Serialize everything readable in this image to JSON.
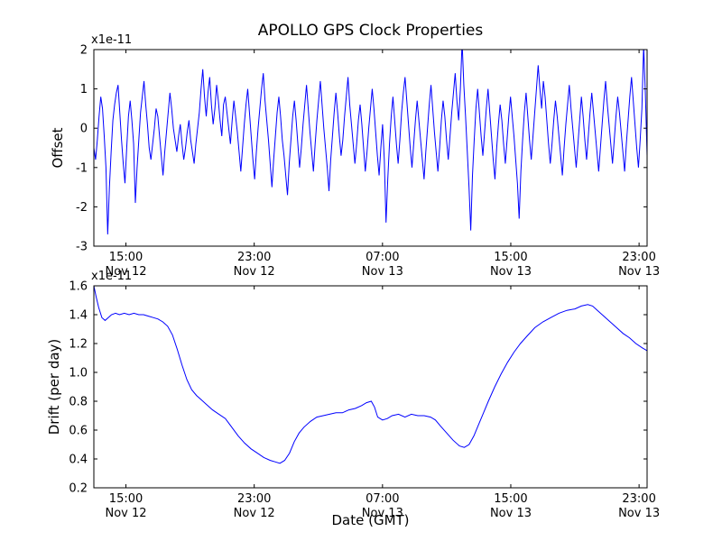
{
  "title": "APOLLO GPS Clock Properties",
  "chart_data": [
    {
      "type": "line",
      "name": "offset",
      "ylabel": "Offset",
      "offset_text": "x1e-11",
      "line_color": "#0000ff",
      "xlim": [
        13,
        47.5
      ],
      "ylim": [
        -3,
        2
      ],
      "yticks": [
        2,
        1,
        0,
        -1,
        -2,
        -3
      ],
      "ytick_labels": [
        "2",
        "1",
        "0",
        "-1",
        "-2",
        "-3"
      ],
      "xticks": [
        15,
        23,
        31,
        39,
        47
      ],
      "xtick_labels_time": [
        "15:00",
        "23:00",
        "07:00",
        "15:00",
        "23:00"
      ],
      "xtick_labels_date": [
        "Nov 12",
        "Nov 12",
        "Nov 13",
        "Nov 13",
        "Nov 13"
      ],
      "x_start": 13,
      "x_end": 47.5,
      "values": [
        -0.5,
        -0.8,
        -0.3,
        0.3,
        0.8,
        0.5,
        -0.2,
        -1.0,
        -2.7,
        -1.5,
        -0.6,
        0.2,
        0.6,
        0.9,
        1.1,
        0.4,
        -0.3,
        -0.9,
        -1.4,
        -0.5,
        0.3,
        0.7,
        0.2,
        -0.4,
        -1.9,
        -1.0,
        -0.3,
        0.4,
        0.8,
        1.2,
        0.6,
        0.1,
        -0.5,
        -0.8,
        -0.4,
        0.0,
        0.5,
        0.3,
        -0.2,
        -0.7,
        -1.2,
        -0.6,
        -0.1,
        0.4,
        0.9,
        0.5,
        0.0,
        -0.3,
        -0.6,
        -0.2,
        0.1,
        -0.4,
        -0.8,
        -0.5,
        -0.1,
        0.2,
        -0.3,
        -0.6,
        -0.9,
        -0.4,
        0.0,
        0.4,
        1.0,
        1.5,
        0.8,
        0.3,
        0.9,
        1.3,
        0.6,
        0.1,
        0.5,
        1.1,
        0.7,
        0.2,
        -0.2,
        0.6,
        0.8,
        0.4,
        0.0,
        -0.4,
        0.2,
        0.7,
        0.3,
        -0.1,
        -0.6,
        -1.1,
        -0.5,
        0.1,
        0.6,
        1.0,
        0.4,
        -0.2,
        -0.8,
        -1.3,
        -0.6,
        0.0,
        0.5,
        1.0,
        1.4,
        0.7,
        0.2,
        -0.3,
        -0.9,
        -1.5,
        -0.8,
        -0.2,
        0.4,
        0.8,
        0.3,
        -0.3,
        -0.7,
        -1.2,
        -1.7,
        -0.9,
        -0.3,
        0.3,
        0.7,
        0.2,
        -0.4,
        -1.0,
        -0.5,
        0.1,
        0.6,
        1.1,
        0.5,
        -0.1,
        -0.6,
        -1.1,
        -0.4,
        0.2,
        0.7,
        1.2,
        0.6,
        0.0,
        -0.5,
        -1.0,
        -1.6,
        -0.8,
        -0.2,
        0.4,
        0.9,
        0.4,
        -0.2,
        -0.7,
        -0.3,
        0.3,
        0.8,
        1.3,
        0.6,
        0.1,
        -0.4,
        -0.9,
        -0.4,
        0.2,
        0.6,
        0.1,
        -0.5,
        -1.1,
        -0.6,
        0.0,
        0.5,
        1.0,
        0.5,
        -0.1,
        -0.7,
        -1.2,
        -0.5,
        0.1,
        -0.8,
        -2.4,
        -1.3,
        -0.4,
        0.3,
        0.8,
        0.2,
        -0.4,
        -0.9,
        -0.3,
        0.4,
        0.9,
        1.3,
        0.7,
        0.1,
        -0.5,
        -1.0,
        -0.4,
        0.2,
        0.7,
        0.2,
        -0.3,
        -0.8,
        -1.3,
        -0.6,
        0.0,
        0.6,
        1.1,
        0.5,
        -0.1,
        -0.6,
        -1.1,
        -0.5,
        0.2,
        0.7,
        0.3,
        -0.3,
        -0.8,
        -0.2,
        0.4,
        0.9,
        1.4,
        0.7,
        0.2,
        1.0,
        2.2,
        1.1,
        0.3,
        -0.6,
        -1.5,
        -2.6,
        -1.2,
        -0.3,
        0.5,
        1.0,
        0.4,
        -0.2,
        -0.7,
        -0.1,
        0.5,
        1.0,
        0.4,
        -0.2,
        -0.8,
        -1.3,
        -0.5,
        0.1,
        0.6,
        0.2,
        -0.4,
        -0.9,
        -0.3,
        0.3,
        0.8,
        0.3,
        -0.2,
        -0.8,
        -1.4,
        -2.3,
        -1.1,
        -0.3,
        0.4,
        0.9,
        0.3,
        -0.3,
        -0.8,
        -0.2,
        0.4,
        1.0,
        1.6,
        1.0,
        0.5,
        1.2,
        0.8,
        0.2,
        -0.4,
        -0.9,
        -0.4,
        0.2,
        0.7,
        0.3,
        -0.2,
        -0.7,
        -1.2,
        -0.5,
        0.1,
        0.6,
        1.1,
        0.5,
        0.0,
        -0.5,
        -1.0,
        -0.4,
        0.2,
        0.8,
        0.3,
        -0.3,
        -0.8,
        -0.2,
        0.4,
        0.9,
        0.4,
        -0.1,
        -0.6,
        -1.1,
        -0.5,
        0.1,
        0.7,
        1.2,
        0.6,
        0.1,
        -0.4,
        -0.9,
        -0.3,
        0.3,
        0.8,
        0.4,
        -0.1,
        -0.6,
        -1.1,
        -0.4,
        0.2,
        0.8,
        1.3,
        0.7,
        0.1,
        -0.5,
        -1.0,
        -0.3,
        0.5,
        2.1,
        0.9,
        -0.7
      ]
    },
    {
      "type": "line",
      "name": "drift",
      "ylabel": "Drift (per day)",
      "xlabel": "Date (GMT)",
      "offset_text": "x1e-11",
      "line_color": "#0000ff",
      "xlim": [
        13,
        47.5
      ],
      "ylim": [
        0.2,
        1.6
      ],
      "yticks": [
        1.6,
        1.4,
        1.2,
        1.0,
        0.8,
        0.6,
        0.4,
        0.2
      ],
      "ytick_labels": [
        "1.6",
        "1.4",
        "1.2",
        "1.0",
        "0.8",
        "0.6",
        "0.4",
        "0.2"
      ],
      "xticks": [
        15,
        23,
        31,
        39,
        47
      ],
      "xtick_labels_time": [
        "15:00",
        "23:00",
        "07:00",
        "15:00",
        "23:00"
      ],
      "xtick_labels_date": [
        "Nov 12",
        "Nov 12",
        "Nov 13",
        "Nov 13",
        "Nov 13"
      ],
      "points": [
        [
          13.0,
          1.6
        ],
        [
          13.15,
          1.52
        ],
        [
          13.3,
          1.45
        ],
        [
          13.5,
          1.38
        ],
        [
          13.7,
          1.36
        ],
        [
          13.9,
          1.38
        ],
        [
          14.1,
          1.4
        ],
        [
          14.35,
          1.41
        ],
        [
          14.6,
          1.4
        ],
        [
          14.9,
          1.41
        ],
        [
          15.2,
          1.4
        ],
        [
          15.5,
          1.41
        ],
        [
          15.8,
          1.4
        ],
        [
          16.1,
          1.4
        ],
        [
          16.4,
          1.39
        ],
        [
          16.7,
          1.38
        ],
        [
          17.0,
          1.37
        ],
        [
          17.3,
          1.35
        ],
        [
          17.6,
          1.32
        ],
        [
          17.9,
          1.26
        ],
        [
          18.2,
          1.16
        ],
        [
          18.5,
          1.05
        ],
        [
          18.8,
          0.95
        ],
        [
          19.1,
          0.88
        ],
        [
          19.4,
          0.84
        ],
        [
          19.7,
          0.81
        ],
        [
          20.0,
          0.78
        ],
        [
          20.4,
          0.74
        ],
        [
          20.8,
          0.71
        ],
        [
          21.2,
          0.68
        ],
        [
          21.6,
          0.62
        ],
        [
          22.0,
          0.56
        ],
        [
          22.4,
          0.51
        ],
        [
          22.8,
          0.47
        ],
        [
          23.2,
          0.44
        ],
        [
          23.6,
          0.41
        ],
        [
          24.0,
          0.39
        ],
        [
          24.3,
          0.38
        ],
        [
          24.6,
          0.37
        ],
        [
          24.9,
          0.39
        ],
        [
          25.2,
          0.44
        ],
        [
          25.5,
          0.52
        ],
        [
          25.8,
          0.58
        ],
        [
          26.1,
          0.62
        ],
        [
          26.5,
          0.66
        ],
        [
          26.9,
          0.69
        ],
        [
          27.3,
          0.7
        ],
        [
          27.7,
          0.71
        ],
        [
          28.1,
          0.72
        ],
        [
          28.5,
          0.72
        ],
        [
          28.9,
          0.74
        ],
        [
          29.3,
          0.75
        ],
        [
          29.7,
          0.77
        ],
        [
          30.0,
          0.79
        ],
        [
          30.3,
          0.8
        ],
        [
          30.5,
          0.76
        ],
        [
          30.7,
          0.69
        ],
        [
          31.0,
          0.67
        ],
        [
          31.3,
          0.68
        ],
        [
          31.6,
          0.7
        ],
        [
          32.0,
          0.71
        ],
        [
          32.4,
          0.69
        ],
        [
          32.8,
          0.71
        ],
        [
          33.2,
          0.7
        ],
        [
          33.6,
          0.7
        ],
        [
          34.0,
          0.69
        ],
        [
          34.3,
          0.67
        ],
        [
          34.6,
          0.63
        ],
        [
          35.0,
          0.58
        ],
        [
          35.4,
          0.53
        ],
        [
          35.8,
          0.49
        ],
        [
          36.1,
          0.48
        ],
        [
          36.4,
          0.5
        ],
        [
          36.7,
          0.56
        ],
        [
          37.0,
          0.64
        ],
        [
          37.3,
          0.72
        ],
        [
          37.6,
          0.8
        ],
        [
          38.0,
          0.9
        ],
        [
          38.4,
          0.99
        ],
        [
          38.8,
          1.07
        ],
        [
          39.2,
          1.14
        ],
        [
          39.6,
          1.2
        ],
        [
          40.0,
          1.25
        ],
        [
          40.5,
          1.31
        ],
        [
          41.0,
          1.35
        ],
        [
          41.5,
          1.38
        ],
        [
          42.0,
          1.41
        ],
        [
          42.5,
          1.43
        ],
        [
          43.0,
          1.44
        ],
        [
          43.4,
          1.46
        ],
        [
          43.8,
          1.47
        ],
        [
          44.1,
          1.46
        ],
        [
          44.4,
          1.43
        ],
        [
          44.8,
          1.39
        ],
        [
          45.2,
          1.35
        ],
        [
          45.6,
          1.31
        ],
        [
          46.0,
          1.27
        ],
        [
          46.4,
          1.24
        ],
        [
          46.8,
          1.2
        ],
        [
          47.2,
          1.17
        ],
        [
          47.5,
          1.15
        ]
      ]
    }
  ]
}
